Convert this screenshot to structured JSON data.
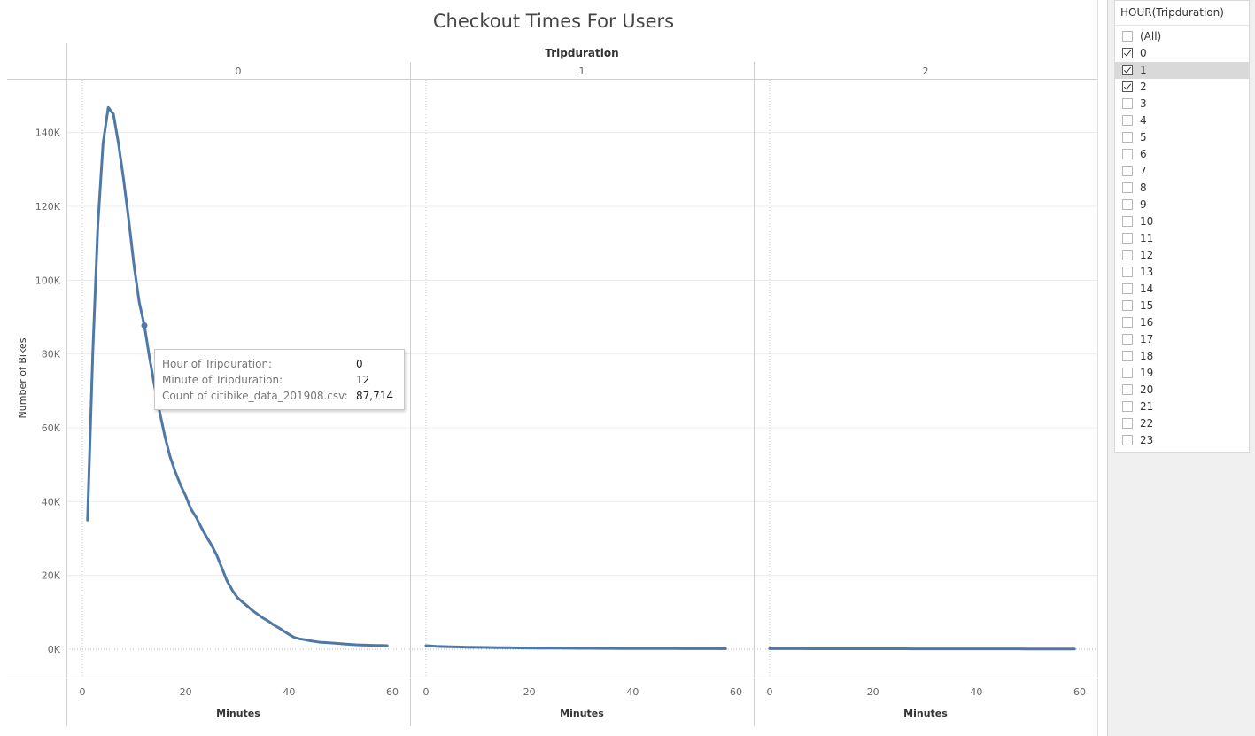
{
  "title": "Checkout Times For Users",
  "chart_data": {
    "type": "line",
    "column_header": "Tripduration",
    "panels": [
      "0",
      "1",
      "2"
    ],
    "xlabel": "Minutes",
    "ylabel": "Number of Bikes",
    "xlim": [
      0,
      60
    ],
    "ylim": [
      0,
      150000
    ],
    "x_ticks": [
      0,
      20,
      40,
      60
    ],
    "y_ticks": [
      0,
      20000,
      40000,
      60000,
      80000,
      100000,
      120000,
      140000
    ],
    "y_tick_labels": [
      "0K",
      "20K",
      "40K",
      "60K",
      "80K",
      "100K",
      "120K",
      "140K"
    ],
    "line_color": "#4e79a7",
    "series": [
      {
        "panel": "0",
        "x": [
          1,
          2,
          3,
          4,
          5,
          6,
          7,
          8,
          9,
          10,
          11,
          12,
          13,
          14,
          15,
          16,
          17,
          18,
          19,
          20,
          21,
          22,
          23,
          24,
          25,
          26,
          27,
          28,
          29,
          30,
          31,
          32,
          33,
          34,
          35,
          36,
          37,
          38,
          39,
          40,
          41,
          42,
          43,
          44,
          45,
          46,
          47,
          48,
          49,
          50,
          51,
          52,
          53,
          54,
          55,
          56,
          57,
          58,
          59
        ],
        "y": [
          35000,
          80000,
          115000,
          137000,
          146800,
          145000,
          137000,
          127000,
          116000,
          104000,
          94000,
          87714,
          79000,
          71000,
          64000,
          57500,
          52000,
          48000,
          44500,
          41500,
          38000,
          35800,
          33000,
          30500,
          28200,
          25500,
          22000,
          18500,
          16000,
          14000,
          12800,
          11600,
          10400,
          9400,
          8400,
          7600,
          6600,
          5800,
          4900,
          4000,
          3200,
          2800,
          2600,
          2300,
          2100,
          1900,
          1800,
          1700,
          1600,
          1500,
          1400,
          1300,
          1200,
          1150,
          1100,
          1050,
          1000,
          1000,
          950
        ],
        "highlight": {
          "x": 12,
          "y": 87714
        }
      },
      {
        "panel": "1",
        "x": [
          0,
          2,
          4,
          6,
          8,
          10,
          12,
          14,
          16,
          18,
          20,
          22,
          24,
          26,
          28,
          30,
          32,
          34,
          36,
          38,
          40,
          42,
          44,
          46,
          48,
          50,
          52,
          54,
          56,
          58
        ],
        "y": [
          950,
          780,
          690,
          620,
          560,
          510,
          470,
          430,
          400,
          370,
          340,
          320,
          300,
          280,
          265,
          250,
          235,
          220,
          210,
          200,
          190,
          180,
          170,
          165,
          160,
          150,
          145,
          140,
          135,
          130
        ]
      },
      {
        "panel": "2",
        "x": [
          0,
          2,
          4,
          6,
          8,
          10,
          12,
          14,
          16,
          18,
          20,
          22,
          24,
          26,
          28,
          30,
          32,
          34,
          36,
          38,
          40,
          42,
          44,
          46,
          48,
          50,
          52,
          54,
          56,
          58,
          59
        ],
        "y": [
          150,
          145,
          140,
          135,
          130,
          128,
          125,
          122,
          120,
          118,
          115,
          112,
          110,
          108,
          105,
          102,
          100,
          98,
          96,
          94,
          92,
          90,
          88,
          86,
          84,
          82,
          80,
          78,
          76,
          74,
          72
        ]
      }
    ]
  },
  "tooltip": {
    "rows": [
      {
        "label": "Hour of Tripduration:",
        "value": "0"
      },
      {
        "label": "Minute of Tripduration:",
        "value": "12"
      },
      {
        "label": "Count of citibike_data_201908.csv:",
        "value": "87,714"
      }
    ]
  },
  "filter": {
    "title": "HOUR(Tripduration)",
    "items": [
      {
        "label": "(All)",
        "checked": false
      },
      {
        "label": "0",
        "checked": true
      },
      {
        "label": "1",
        "checked": true,
        "highlight": true
      },
      {
        "label": "2",
        "checked": true
      },
      {
        "label": "3",
        "checked": false
      },
      {
        "label": "4",
        "checked": false
      },
      {
        "label": "5",
        "checked": false
      },
      {
        "label": "6",
        "checked": false
      },
      {
        "label": "7",
        "checked": false
      },
      {
        "label": "8",
        "checked": false
      },
      {
        "label": "9",
        "checked": false
      },
      {
        "label": "10",
        "checked": false
      },
      {
        "label": "11",
        "checked": false
      },
      {
        "label": "12",
        "checked": false
      },
      {
        "label": "13",
        "checked": false
      },
      {
        "label": "14",
        "checked": false
      },
      {
        "label": "15",
        "checked": false
      },
      {
        "label": "16",
        "checked": false
      },
      {
        "label": "17",
        "checked": false
      },
      {
        "label": "18",
        "checked": false
      },
      {
        "label": "19",
        "checked": false
      },
      {
        "label": "20",
        "checked": false
      },
      {
        "label": "21",
        "checked": false
      },
      {
        "label": "22",
        "checked": false
      },
      {
        "label": "23",
        "checked": false
      }
    ]
  }
}
